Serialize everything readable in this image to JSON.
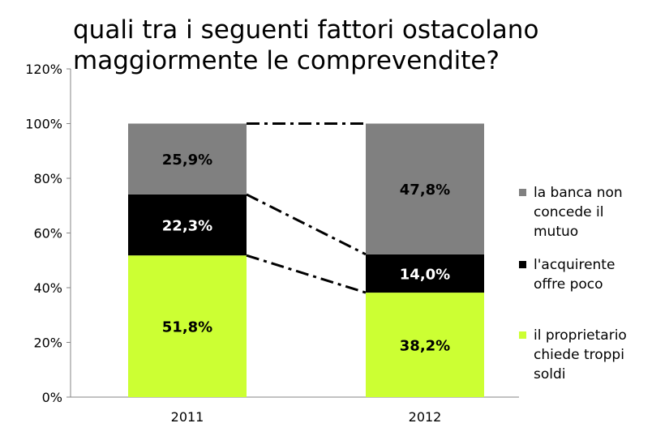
{
  "chart_data": {
    "type": "bar",
    "stacked": true,
    "title": "quali tra i seguenti fattori ostacolano\nmaggiormente le comprevendite?",
    "categories": [
      "2011",
      "2012"
    ],
    "series": [
      {
        "name": "il proprietario chiede troppi soldi",
        "values": [
          51.8,
          38.2
        ],
        "labels": [
          "51,8%",
          "38,2%"
        ],
        "color": "#ccff33",
        "label_color": "#000000"
      },
      {
        "name": "l'acquirente offre poco",
        "values": [
          22.3,
          14.0
        ],
        "labels": [
          "22,3%",
          "14,0%"
        ],
        "color": "#000000",
        "label_color": "#ffffff"
      },
      {
        "name": "la banca non concede il mutuo",
        "values": [
          25.9,
          47.8
        ],
        "labels": [
          "25,9%",
          "47,8%"
        ],
        "color": "#808080",
        "label_color": "#000000"
      }
    ],
    "legend": [
      {
        "lines": [
          "la banca non",
          "concede il",
          "mutuo"
        ],
        "color": "#808080"
      },
      {
        "lines": [
          "l'acquirente",
          "offre poco"
        ],
        "color": "#000000"
      },
      {
        "lines": [
          "il proprietario",
          "chiede troppi",
          "soldi"
        ],
        "color": "#ccff33"
      }
    ],
    "y_ticks": [
      "0%",
      "20%",
      "40%",
      "60%",
      "80%",
      "100%",
      "120%"
    ],
    "ylim": [
      0,
      120
    ],
    "xlabel": "",
    "ylabel": "",
    "grid": false,
    "legend_position": "right",
    "connector_lines": "dash-dot"
  }
}
